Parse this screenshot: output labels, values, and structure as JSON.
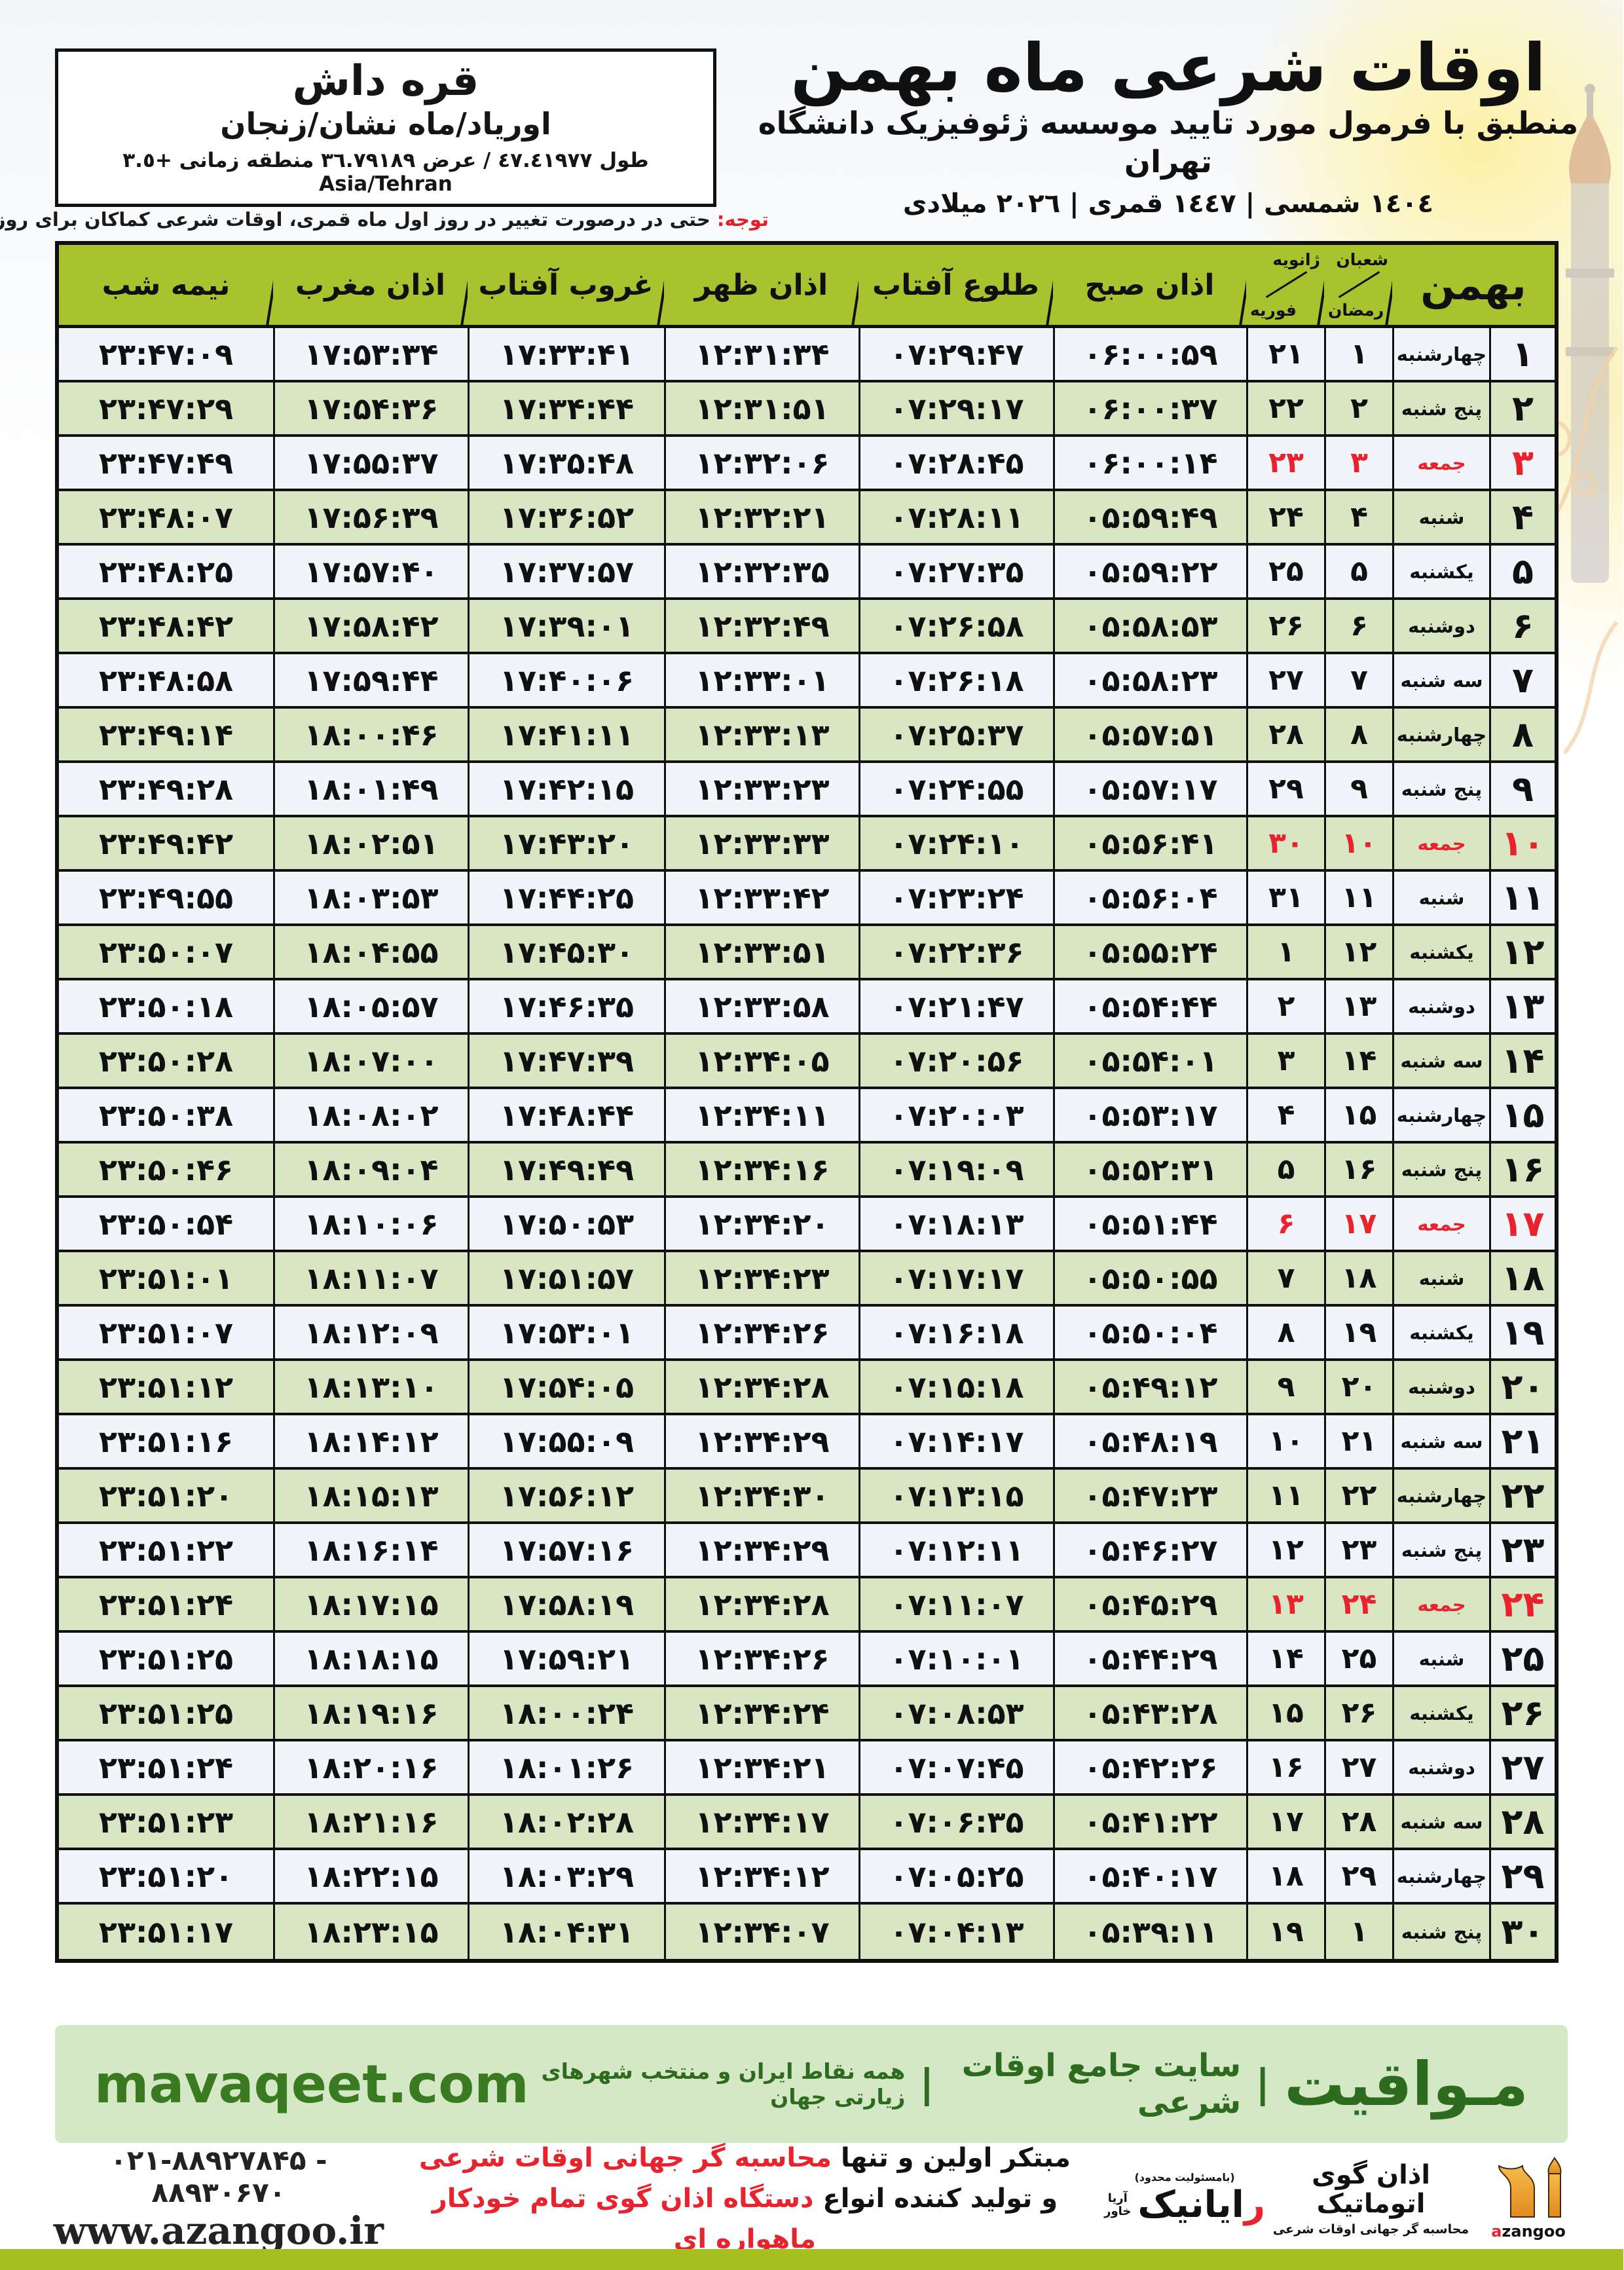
{
  "location_box": {
    "city": "قره داش",
    "region": "اوریاد/ماه نشان/زنجان",
    "coords": "طول ٤٧.٤١٩٧٧ / عرض ٣٦.٧٩١٨٩ منطقه زمانی +٣.٥ Asia/Tehran"
  },
  "title": {
    "main": "اوقات شرعی ماه بهمن",
    "subtitle": "منطبق با فرمول مورد تایید موسسه ژئوفیزیک دانشگاه تهران",
    "years": "١٤٠٤ شمسی | ١٤٤٧ قمری | ٢٠٢٦ میلادی"
  },
  "note": {
    "label": "توجه:",
    "text": " حتی در درصورت تغییر در روز اول ماه قمری، اوقات شرعی کماکان برای روزهای شمسی و میلادی معتبر است."
  },
  "table": {
    "headers": {
      "bahman": "بهمن",
      "hijri_top": "شعبان",
      "hijri_bottom": "رمضان",
      "greg_top": "ژانویه",
      "greg_bottom": "فوریه",
      "fajr": "اذان صبح",
      "sunrise": "طلوع آفتاب",
      "dhuhr": "اذان ظهر",
      "sunset": "غروب آفتاب",
      "maghrib": "اذان مغرب",
      "midnight": "نیمه شب"
    },
    "rows": [
      {
        "day": "۱",
        "weekday": "چهارشنبه",
        "hijri": "۱",
        "greg": "۲۱",
        "fajr": "۰۶:۰۰:۵۹",
        "sunrise": "۰۷:۲۹:۴۷",
        "dhuhr": "۱۲:۳۱:۳۴",
        "sunset": "۱۷:۳۳:۴۱",
        "maghrib": "۱۷:۵۳:۳۴",
        "midnight": "۲۳:۴۷:۰۹",
        "friday": false
      },
      {
        "day": "۲",
        "weekday": "پنج شنبه",
        "hijri": "۲",
        "greg": "۲۲",
        "fajr": "۰۶:۰۰:۳۷",
        "sunrise": "۰۷:۲۹:۱۷",
        "dhuhr": "۱۲:۳۱:۵۱",
        "sunset": "۱۷:۳۴:۴۴",
        "maghrib": "۱۷:۵۴:۳۶",
        "midnight": "۲۳:۴۷:۲۹",
        "friday": false
      },
      {
        "day": "۳",
        "weekday": "جمعه",
        "hijri": "۳",
        "greg": "۲۳",
        "fajr": "۰۶:۰۰:۱۴",
        "sunrise": "۰۷:۲۸:۴۵",
        "dhuhr": "۱۲:۳۲:۰۶",
        "sunset": "۱۷:۳۵:۴۸",
        "maghrib": "۱۷:۵۵:۳۷",
        "midnight": "۲۳:۴۷:۴۹",
        "friday": true
      },
      {
        "day": "۴",
        "weekday": "شنبه",
        "hijri": "۴",
        "greg": "۲۴",
        "fajr": "۰۵:۵۹:۴۹",
        "sunrise": "۰۷:۲۸:۱۱",
        "dhuhr": "۱۲:۳۲:۲۱",
        "sunset": "۱۷:۳۶:۵۲",
        "maghrib": "۱۷:۵۶:۳۹",
        "midnight": "۲۳:۴۸:۰۷",
        "friday": false
      },
      {
        "day": "۵",
        "weekday": "یکشنبه",
        "hijri": "۵",
        "greg": "۲۵",
        "fajr": "۰۵:۵۹:۲۲",
        "sunrise": "۰۷:۲۷:۳۵",
        "dhuhr": "۱۲:۳۲:۳۵",
        "sunset": "۱۷:۳۷:۵۷",
        "maghrib": "۱۷:۵۷:۴۰",
        "midnight": "۲۳:۴۸:۲۵",
        "friday": false
      },
      {
        "day": "۶",
        "weekday": "دوشنبه",
        "hijri": "۶",
        "greg": "۲۶",
        "fajr": "۰۵:۵۸:۵۳",
        "sunrise": "۰۷:۲۶:۵۸",
        "dhuhr": "۱۲:۳۲:۴۹",
        "sunset": "۱۷:۳۹:۰۱",
        "maghrib": "۱۷:۵۸:۴۲",
        "midnight": "۲۳:۴۸:۴۲",
        "friday": false
      },
      {
        "day": "۷",
        "weekday": "سه شنبه",
        "hijri": "۷",
        "greg": "۲۷",
        "fajr": "۰۵:۵۸:۲۳",
        "sunrise": "۰۷:۲۶:۱۸",
        "dhuhr": "۱۲:۳۳:۰۱",
        "sunset": "۱۷:۴۰:۰۶",
        "maghrib": "۱۷:۵۹:۴۴",
        "midnight": "۲۳:۴۸:۵۸",
        "friday": false
      },
      {
        "day": "۸",
        "weekday": "چهارشنبه",
        "hijri": "۸",
        "greg": "۲۸",
        "fajr": "۰۵:۵۷:۵۱",
        "sunrise": "۰۷:۲۵:۳۷",
        "dhuhr": "۱۲:۳۳:۱۳",
        "sunset": "۱۷:۴۱:۱۱",
        "maghrib": "۱۸:۰۰:۴۶",
        "midnight": "۲۳:۴۹:۱۴",
        "friday": false
      },
      {
        "day": "۹",
        "weekday": "پنج شنبه",
        "hijri": "۹",
        "greg": "۲۹",
        "fajr": "۰۵:۵۷:۱۷",
        "sunrise": "۰۷:۲۴:۵۵",
        "dhuhr": "۱۲:۳۳:۲۳",
        "sunset": "۱۷:۴۲:۱۵",
        "maghrib": "۱۸:۰۱:۴۹",
        "midnight": "۲۳:۴۹:۲۸",
        "friday": false
      },
      {
        "day": "۱۰",
        "weekday": "جمعه",
        "hijri": "۱۰",
        "greg": "۳۰",
        "fajr": "۰۵:۵۶:۴۱",
        "sunrise": "۰۷:۲۴:۱۰",
        "dhuhr": "۱۲:۳۳:۳۳",
        "sunset": "۱۷:۴۳:۲۰",
        "maghrib": "۱۸:۰۲:۵۱",
        "midnight": "۲۳:۴۹:۴۲",
        "friday": true
      },
      {
        "day": "۱۱",
        "weekday": "شنبه",
        "hijri": "۱۱",
        "greg": "۳۱",
        "fajr": "۰۵:۵۶:۰۴",
        "sunrise": "۰۷:۲۳:۲۴",
        "dhuhr": "۱۲:۳۳:۴۲",
        "sunset": "۱۷:۴۴:۲۵",
        "maghrib": "۱۸:۰۳:۵۳",
        "midnight": "۲۳:۴۹:۵۵",
        "friday": false
      },
      {
        "day": "۱۲",
        "weekday": "یکشنبه",
        "hijri": "۱۲",
        "greg": "۱",
        "fajr": "۰۵:۵۵:۲۴",
        "sunrise": "۰۷:۲۲:۳۶",
        "dhuhr": "۱۲:۳۳:۵۱",
        "sunset": "۱۷:۴۵:۳۰",
        "maghrib": "۱۸:۰۴:۵۵",
        "midnight": "۲۳:۵۰:۰۷",
        "friday": false
      },
      {
        "day": "۱۳",
        "weekday": "دوشنبه",
        "hijri": "۱۳",
        "greg": "۲",
        "fajr": "۰۵:۵۴:۴۴",
        "sunrise": "۰۷:۲۱:۴۷",
        "dhuhr": "۱۲:۳۳:۵۸",
        "sunset": "۱۷:۴۶:۳۵",
        "maghrib": "۱۸:۰۵:۵۷",
        "midnight": "۲۳:۵۰:۱۸",
        "friday": false
      },
      {
        "day": "۱۴",
        "weekday": "سه شنبه",
        "hijri": "۱۴",
        "greg": "۳",
        "fajr": "۰۵:۵۴:۰۱",
        "sunrise": "۰۷:۲۰:۵۶",
        "dhuhr": "۱۲:۳۴:۰۵",
        "sunset": "۱۷:۴۷:۳۹",
        "maghrib": "۱۸:۰۷:۰۰",
        "midnight": "۲۳:۵۰:۲۸",
        "friday": false
      },
      {
        "day": "۱۵",
        "weekday": "چهارشنبه",
        "hijri": "۱۵",
        "greg": "۴",
        "fajr": "۰۵:۵۳:۱۷",
        "sunrise": "۰۷:۲۰:۰۳",
        "dhuhr": "۱۲:۳۴:۱۱",
        "sunset": "۱۷:۴۸:۴۴",
        "maghrib": "۱۸:۰۸:۰۲",
        "midnight": "۲۳:۵۰:۳۸",
        "friday": false
      },
      {
        "day": "۱۶",
        "weekday": "پنج شنبه",
        "hijri": "۱۶",
        "greg": "۵",
        "fajr": "۰۵:۵۲:۳۱",
        "sunrise": "۰۷:۱۹:۰۹",
        "dhuhr": "۱۲:۳۴:۱۶",
        "sunset": "۱۷:۴۹:۴۹",
        "maghrib": "۱۸:۰۹:۰۴",
        "midnight": "۲۳:۵۰:۴۶",
        "friday": false
      },
      {
        "day": "۱۷",
        "weekday": "جمعه",
        "hijri": "۱۷",
        "greg": "۶",
        "fajr": "۰۵:۵۱:۴۴",
        "sunrise": "۰۷:۱۸:۱۳",
        "dhuhr": "۱۲:۳۴:۲۰",
        "sunset": "۱۷:۵۰:۵۳",
        "maghrib": "۱۸:۱۰:۰۶",
        "midnight": "۲۳:۵۰:۵۴",
        "friday": true
      },
      {
        "day": "۱۸",
        "weekday": "شنبه",
        "hijri": "۱۸",
        "greg": "۷",
        "fajr": "۰۵:۵۰:۵۵",
        "sunrise": "۰۷:۱۷:۱۷",
        "dhuhr": "۱۲:۳۴:۲۳",
        "sunset": "۱۷:۵۱:۵۷",
        "maghrib": "۱۸:۱۱:۰۷",
        "midnight": "۲۳:۵۱:۰۱",
        "friday": false
      },
      {
        "day": "۱۹",
        "weekday": "یکشنبه",
        "hijri": "۱۹",
        "greg": "۸",
        "fajr": "۰۵:۵۰:۰۴",
        "sunrise": "۰۷:۱۶:۱۸",
        "dhuhr": "۱۲:۳۴:۲۶",
        "sunset": "۱۷:۵۳:۰۱",
        "maghrib": "۱۸:۱۲:۰۹",
        "midnight": "۲۳:۵۱:۰۷",
        "friday": false
      },
      {
        "day": "۲۰",
        "weekday": "دوشنبه",
        "hijri": "۲۰",
        "greg": "۹",
        "fajr": "۰۵:۴۹:۱۲",
        "sunrise": "۰۷:۱۵:۱۸",
        "dhuhr": "۱۲:۳۴:۲۸",
        "sunset": "۱۷:۵۴:۰۵",
        "maghrib": "۱۸:۱۳:۱۰",
        "midnight": "۲۳:۵۱:۱۲",
        "friday": false
      },
      {
        "day": "۲۱",
        "weekday": "سه شنبه",
        "hijri": "۲۱",
        "greg": "۱۰",
        "fajr": "۰۵:۴۸:۱۹",
        "sunrise": "۰۷:۱۴:۱۷",
        "dhuhr": "۱۲:۳۴:۲۹",
        "sunset": "۱۷:۵۵:۰۹",
        "maghrib": "۱۸:۱۴:۱۲",
        "midnight": "۲۳:۵۱:۱۶",
        "friday": false
      },
      {
        "day": "۲۲",
        "weekday": "چهارشنبه",
        "hijri": "۲۲",
        "greg": "۱۱",
        "fajr": "۰۵:۴۷:۲۳",
        "sunrise": "۰۷:۱۳:۱۵",
        "dhuhr": "۱۲:۳۴:۳۰",
        "sunset": "۱۷:۵۶:۱۲",
        "maghrib": "۱۸:۱۵:۱۳",
        "midnight": "۲۳:۵۱:۲۰",
        "friday": false
      },
      {
        "day": "۲۳",
        "weekday": "پنج شنبه",
        "hijri": "۲۳",
        "greg": "۱۲",
        "fajr": "۰۵:۴۶:۲۷",
        "sunrise": "۰۷:۱۲:۱۱",
        "dhuhr": "۱۲:۳۴:۲۹",
        "sunset": "۱۷:۵۷:۱۶",
        "maghrib": "۱۸:۱۶:۱۴",
        "midnight": "۲۳:۵۱:۲۲",
        "friday": false
      },
      {
        "day": "۲۴",
        "weekday": "جمعه",
        "hijri": "۲۴",
        "greg": "۱۳",
        "fajr": "۰۵:۴۵:۲۹",
        "sunrise": "۰۷:۱۱:۰۷",
        "dhuhr": "۱۲:۳۴:۲۸",
        "sunset": "۱۷:۵۸:۱۹",
        "maghrib": "۱۸:۱۷:۱۵",
        "midnight": "۲۳:۵۱:۲۴",
        "friday": true
      },
      {
        "day": "۲۵",
        "weekday": "شنبه",
        "hijri": "۲۵",
        "greg": "۱۴",
        "fajr": "۰۵:۴۴:۲۹",
        "sunrise": "۰۷:۱۰:۰۱",
        "dhuhr": "۱۲:۳۴:۲۶",
        "sunset": "۱۷:۵۹:۲۱",
        "maghrib": "۱۸:۱۸:۱۵",
        "midnight": "۲۳:۵۱:۲۵",
        "friday": false
      },
      {
        "day": "۲۶",
        "weekday": "یکشنبه",
        "hijri": "۲۶",
        "greg": "۱۵",
        "fajr": "۰۵:۴۳:۲۸",
        "sunrise": "۰۷:۰۸:۵۳",
        "dhuhr": "۱۲:۳۴:۲۴",
        "sunset": "۱۸:۰۰:۲۴",
        "maghrib": "۱۸:۱۹:۱۶",
        "midnight": "۲۳:۵۱:۲۵",
        "friday": false
      },
      {
        "day": "۲۷",
        "weekday": "دوشنبه",
        "hijri": "۲۷",
        "greg": "۱۶",
        "fajr": "۰۵:۴۲:۲۶",
        "sunrise": "۰۷:۰۷:۴۵",
        "dhuhr": "۱۲:۳۴:۲۱",
        "sunset": "۱۸:۰۱:۲۶",
        "maghrib": "۱۸:۲۰:۱۶",
        "midnight": "۲۳:۵۱:۲۴",
        "friday": false
      },
      {
        "day": "۲۸",
        "weekday": "سه شنبه",
        "hijri": "۲۸",
        "greg": "۱۷",
        "fajr": "۰۵:۴۱:۲۲",
        "sunrise": "۰۷:۰۶:۳۵",
        "dhuhr": "۱۲:۳۴:۱۷",
        "sunset": "۱۸:۰۲:۲۸",
        "maghrib": "۱۸:۲۱:۱۶",
        "midnight": "۲۳:۵۱:۲۳",
        "friday": false
      },
      {
        "day": "۲۹",
        "weekday": "چهارشنبه",
        "hijri": "۲۹",
        "greg": "۱۸",
        "fajr": "۰۵:۴۰:۱۷",
        "sunrise": "۰۷:۰۵:۲۵",
        "dhuhr": "۱۲:۳۴:۱۲",
        "sunset": "۱۸:۰۳:۲۹",
        "maghrib": "۱۸:۲۲:۱۵",
        "midnight": "۲۳:۵۱:۲۰",
        "friday": false
      },
      {
        "day": "۳۰",
        "weekday": "پنج شنبه",
        "hijri": "۱",
        "greg": "۱۹",
        "fajr": "۰۵:۳۹:۱۱",
        "sunrise": "۰۷:۰۴:۱۳",
        "dhuhr": "۱۲:۳۴:۰۷",
        "sunset": "۱۸:۰۴:۳۱",
        "maghrib": "۱۸:۲۳:۱۵",
        "midnight": "۲۳:۵۱:۱۷",
        "friday": false
      }
    ]
  },
  "mavaqeet": {
    "brand": "مـواقیت",
    "sep": "|",
    "tag1": "سایت جامع اوقات شرعی",
    "tag2": "همه نقاط ایران و منتخب شهرهای زیارتی جهان",
    "url": "mavaqeet.com"
  },
  "footer": {
    "azangoo_title": "اذان گوی اتوماتیک",
    "azangoo_sub": "محاسبه گر جهانی اوقات شرعی",
    "azangoo_brand_a": "a",
    "azangoo_brand_rest": "zangoo",
    "rayanik_top": "(بامسئولیت محدود)",
    "rayanik_first": "ر",
    "rayanik_rest": "ایانیک",
    "rayanik_side1": "آریا",
    "rayanik_side2": "خاور",
    "line1_black": "مبتکر اولین و تنها ",
    "line1_red": "محاسبه گر جهانی اوقات شرعی",
    "line2_black": "و تولید کننده انواع ",
    "line2_red": "دستگاه اذان گوی تمام خودکار ماهواره ای",
    "phones": "۰۲۱-۸۸۹۲۷۸۴۵ - ۸۸۹۳۰۶۷۰",
    "website": "www.azangoo.ir"
  },
  "colors": {
    "header_green": "#a9c32e",
    "row_green": "#d9e6c3",
    "row_light": "#f1f4f8",
    "friday_red": "#e8232e",
    "mavaqeet_bar": "#d5e8c5",
    "mavaqeet_text": "#2d6b1f",
    "bottom_strip": "#a6c01f"
  }
}
